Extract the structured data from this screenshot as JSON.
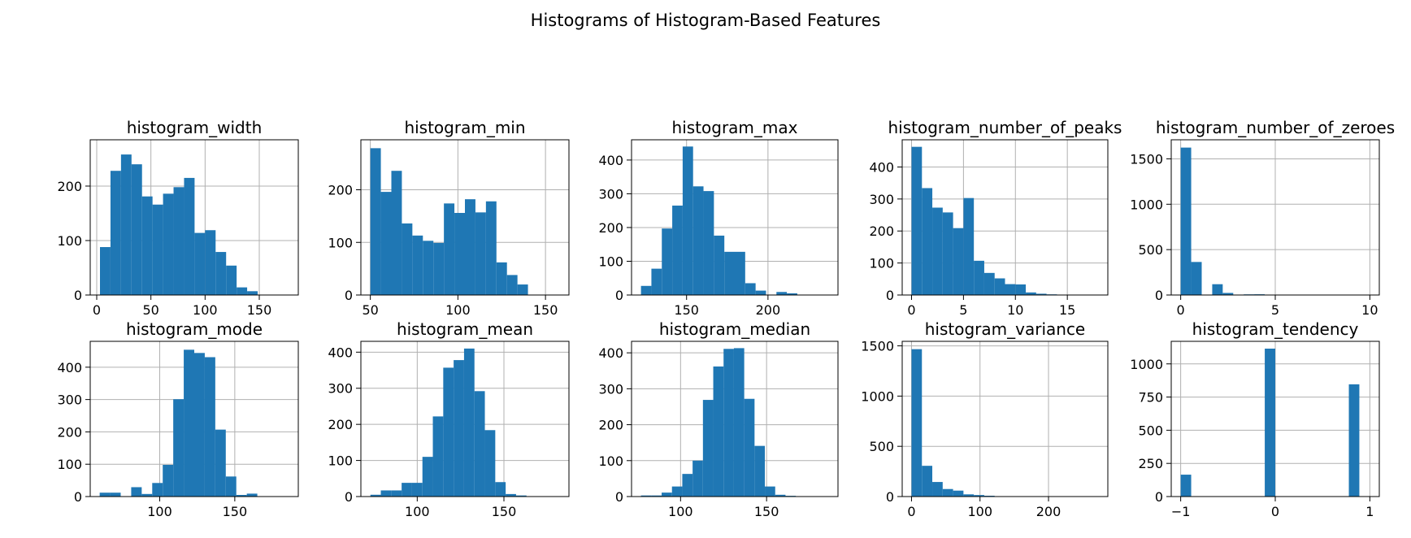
{
  "figure": {
    "title": "Histograms of Histogram-Based Features"
  },
  "colors": {
    "bar": "#1f77b4",
    "grid": "#b0b0b0",
    "axis": "#000000"
  },
  "chart_data": [
    {
      "type": "bar",
      "title": "histogram_width",
      "grid": true,
      "bin_edges": [
        3,
        12.7,
        22.4,
        32.1,
        41.8,
        51.5,
        61.2,
        70.9,
        80.6,
        90.3,
        100,
        109.7,
        119.4,
        129.1,
        138.8,
        148.5,
        158.2,
        167.9,
        177.6
      ],
      "counts": [
        88,
        228,
        258,
        240,
        181,
        166,
        186,
        198,
        215,
        114,
        119,
        79,
        54,
        14,
        7,
        0,
        0,
        0
      ],
      "xlim": [
        -6,
        186
      ],
      "ylim": [
        0,
        285
      ],
      "xticks": [
        0,
        50,
        100,
        150
      ],
      "yticks": [
        0,
        100,
        200
      ]
    },
    {
      "type": "bar",
      "title": "histogram_min",
      "grid": true,
      "bin_edges": [
        50,
        56,
        62,
        68,
        74,
        80,
        86,
        92,
        98,
        104,
        110,
        116,
        122,
        128,
        134,
        140,
        146,
        152,
        158
      ],
      "counts": [
        279,
        196,
        236,
        136,
        113,
        103,
        99,
        174,
        156,
        182,
        157,
        178,
        62,
        38,
        20,
        0,
        0,
        0
      ],
      "xlim": [
        44.6,
        163.4
      ],
      "ylim": [
        0,
        295
      ],
      "xticks": [
        50,
        100,
        150
      ],
      "yticks": [
        0,
        100,
        200
      ]
    },
    {
      "type": "bar",
      "title": "histogram_max",
      "grid": true,
      "bin_edges": [
        122,
        128.4,
        134.8,
        141.2,
        147.6,
        154,
        160.4,
        166.8,
        173.2,
        179.6,
        186,
        192.4,
        198.8,
        205.2,
        211.6,
        218,
        224.4,
        230.8,
        237.2
      ],
      "counts": [
        27,
        78,
        197,
        265,
        440,
        322,
        308,
        176,
        128,
        128,
        35,
        13,
        0,
        9,
        5,
        0,
        0,
        0
      ],
      "xlim": [
        116.2,
        243
      ],
      "ylim": [
        0,
        460
      ],
      "xticks": [
        150,
        200
      ],
      "yticks": [
        0,
        100,
        200,
        300,
        400
      ]
    },
    {
      "type": "bar",
      "title": "histogram_number_of_peaks",
      "grid": true,
      "bin_edges": [
        0,
        1,
        2,
        3,
        4,
        5,
        6,
        7,
        8,
        9,
        10,
        11,
        12,
        13,
        14,
        15,
        16,
        17,
        18
      ],
      "counts": [
        463,
        334,
        273,
        258,
        209,
        303,
        107,
        69,
        52,
        34,
        33,
        8,
        4,
        2,
        1,
        0,
        0,
        0
      ],
      "xlim": [
        -0.9,
        18.9
      ],
      "ylim": [
        0,
        485
      ],
      "xticks": [
        0,
        5,
        10,
        15
      ],
      "yticks": [
        0,
        100,
        200,
        300,
        400
      ]
    },
    {
      "type": "bar",
      "title": "histogram_number_of_zeroes",
      "grid": true,
      "bin_edges": [
        0,
        0.555,
        1.111,
        1.667,
        2.222,
        2.778,
        3.333,
        3.889,
        4.444,
        5,
        5.556,
        6.111,
        6.667,
        7.222,
        7.778,
        8.333,
        8.889,
        9.444,
        10
      ],
      "counts": [
        1624,
        364,
        0,
        119,
        23,
        0,
        7,
        8,
        0,
        3,
        0,
        2,
        4,
        0,
        4,
        0,
        2,
        0
      ],
      "xlim": [
        -0.5,
        10.5
      ],
      "ylim": [
        0,
        1710
      ],
      "xticks": [
        0,
        5,
        10
      ],
      "yticks": [
        0,
        500,
        1000,
        1500
      ]
    },
    {
      "type": "bar",
      "title": "histogram_mode",
      "grid": true,
      "bin_edges": [
        60,
        67,
        74,
        81,
        88,
        95,
        102,
        109,
        116,
        123,
        130,
        137,
        144,
        151,
        158,
        165,
        172,
        179,
        186
      ],
      "counts": [
        12,
        12,
        0,
        29,
        8,
        42,
        98,
        301,
        454,
        444,
        431,
        207,
        62,
        5,
        9,
        0,
        0,
        0
      ],
      "xlim": [
        53.7,
        192.3
      ],
      "ylim": [
        0,
        480
      ],
      "xticks": [
        100,
        150
      ],
      "yticks": [
        0,
        100,
        200,
        300,
        400
      ]
    },
    {
      "type": "bar",
      "title": "histogram_mean",
      "grid": true,
      "bin_edges": [
        73,
        79,
        85,
        91,
        97,
        103,
        109,
        115,
        121,
        127,
        133,
        139,
        145,
        151,
        157,
        163,
        169,
        175,
        182
      ],
      "counts": [
        5,
        17,
        17,
        38,
        38,
        110,
        222,
        357,
        378,
        410,
        292,
        184,
        40,
        7,
        3,
        0,
        0,
        0
      ],
      "xlim": [
        67.5,
        187.5
      ],
      "ylim": [
        0,
        430
      ],
      "xticks": [
        100,
        150
      ],
      "yticks": [
        0,
        100,
        200,
        300,
        400
      ]
    },
    {
      "type": "bar",
      "title": "histogram_median",
      "grid": true,
      "bin_edges": [
        77,
        83,
        89,
        95,
        101,
        107,
        113,
        119,
        125,
        131,
        137,
        143,
        149,
        155,
        161,
        167,
        173,
        179,
        186
      ],
      "counts": [
        3,
        3,
        11,
        28,
        63,
        100,
        269,
        362,
        411,
        413,
        272,
        141,
        28,
        5,
        2,
        0,
        0,
        0
      ],
      "xlim": [
        71.5,
        191.5
      ],
      "ylim": [
        0,
        432
      ],
      "xticks": [
        100,
        150
      ],
      "yticks": [
        0,
        100,
        200,
        300,
        400
      ]
    },
    {
      "type": "bar",
      "title": "histogram_variance",
      "grid": true,
      "bin_edges": [
        0,
        15.17,
        30.33,
        45.5,
        60.67,
        75.83,
        91,
        106.17,
        121.33,
        136.5,
        151.67,
        166.83,
        182,
        197.17,
        212.33,
        227.5,
        242.67,
        257.83,
        273
      ],
      "counts": [
        1467,
        306,
        145,
        75,
        59,
        22,
        15,
        8,
        0,
        3,
        1,
        0,
        0,
        0,
        0,
        0,
        0,
        1
      ],
      "xlim": [
        -13.6,
        286.6
      ],
      "ylim": [
        0,
        1545
      ],
      "xticks": [
        0,
        100,
        200
      ],
      "yticks": [
        0,
        500,
        1000,
        1500
      ]
    },
    {
      "type": "bar",
      "title": "histogram_tendency",
      "grid": true,
      "bin_edges": [
        -1,
        -0.889,
        -0.778,
        -0.667,
        -0.556,
        -0.444,
        -0.333,
        -0.222,
        -0.111,
        0,
        0.111,
        0.222,
        0.333,
        0.444,
        0.556,
        0.667,
        0.778,
        0.889,
        1
      ],
      "counts": [
        165,
        0,
        0,
        0,
        0,
        0,
        0,
        0,
        1115,
        0,
        0,
        0,
        0,
        0,
        0,
        0,
        846,
        0
      ],
      "xlim": [
        -1.1,
        1.1
      ],
      "ylim": [
        0,
        1170
      ],
      "xticks": [
        -1,
        0,
        1
      ],
      "yticks": [
        0,
        250,
        500,
        750,
        1000
      ]
    }
  ]
}
